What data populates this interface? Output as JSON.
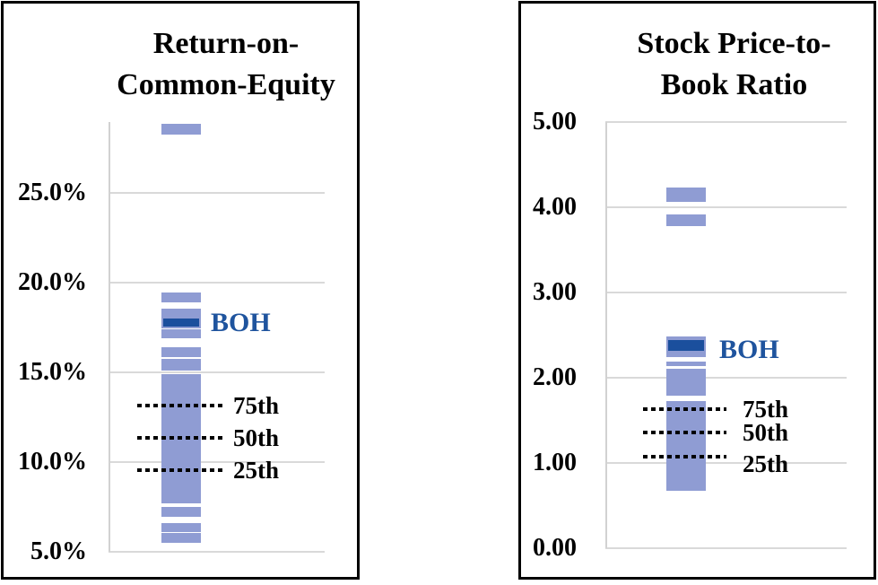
{
  "colors": {
    "peer_bar": "#8f9cd3",
    "boh_bar": "#1b4f9d",
    "boh_label_text": "#1f549e",
    "gridline": "#d9d9d9",
    "axis_line": "#d2d2d2",
    "box_border": "#000000",
    "percentile_line": "#000000",
    "text": "#000000",
    "background": "#ffffff"
  },
  "chart_data": [
    {
      "type": "bar",
      "subtype": "peer-distribution-strip",
      "title": "Return-on-Common-Equity",
      "title_lines": [
        "Return-on-",
        "Common-Equity"
      ],
      "ylim": [
        5,
        28.95
      ],
      "grid": true,
      "yticks": [
        {
          "label": "25.0%",
          "value": 25
        },
        {
          "label": "20.0%",
          "value": 20
        },
        {
          "label": "15.0%",
          "value": 15
        },
        {
          "label": "10.0%",
          "value": 10
        },
        {
          "label": "5.0%",
          "value": 5
        }
      ],
      "boh": {
        "label": "BOH",
        "top": 18.0,
        "bottom": 17.55
      },
      "percentiles": [
        {
          "label": "75th",
          "value": 13.15
        },
        {
          "label": "50th",
          "value": 11.33
        },
        {
          "label": "25th",
          "value": 9.53
        }
      ],
      "peer_segments": [
        {
          "top": 28.85,
          "bottom": 28.25
        },
        {
          "top": 19.45,
          "bottom": 18.9
        },
        {
          "top": 18.55,
          "bottom": 18.1
        },
        {
          "top": 18.1,
          "bottom": 17.45
        },
        {
          "top": 17.4,
          "bottom": 16.9
        },
        {
          "top": 16.4,
          "bottom": 15.85
        },
        {
          "top": 15.75,
          "bottom": 15.1
        },
        {
          "top": 14.9,
          "bottom": 7.7
        },
        {
          "top": 7.5,
          "bottom": 6.95
        },
        {
          "top": 6.6,
          "bottom": 6.1
        },
        {
          "top": 6.03,
          "bottom": 5.5
        }
      ]
    },
    {
      "type": "bar",
      "subtype": "peer-distribution-strip",
      "title": "Stock Price-to-Book Ratio",
      "title_lines": [
        "Stock Price-to-",
        "Book Ratio"
      ],
      "ylim": [
        0,
        5
      ],
      "grid": true,
      "yticks": [
        {
          "label": "5.00",
          "value": 5
        },
        {
          "label": "4.00",
          "value": 4
        },
        {
          "label": "3.00",
          "value": 3
        },
        {
          "label": "2.00",
          "value": 2
        },
        {
          "label": "1.00",
          "value": 1
        },
        {
          "label": "0.00",
          "value": 0
        }
      ],
      "boh": {
        "label": "BOH",
        "top": 2.44,
        "bottom": 2.32
      },
      "percentiles": [
        {
          "label": "75th",
          "value": 1.63
        },
        {
          "label": "50th",
          "value": 1.36
        },
        {
          "label": "25th",
          "value": 1.07
        }
      ],
      "peer_segments": [
        {
          "top": 4.23,
          "bottom": 4.06
        },
        {
          "top": 3.92,
          "bottom": 3.78
        },
        {
          "top": 2.48,
          "bottom": 2.24
        },
        {
          "top": 2.19,
          "bottom": 2.14
        },
        {
          "top": 2.11,
          "bottom": 1.79
        },
        {
          "top": 1.73,
          "bottom": 0.67
        }
      ]
    }
  ]
}
